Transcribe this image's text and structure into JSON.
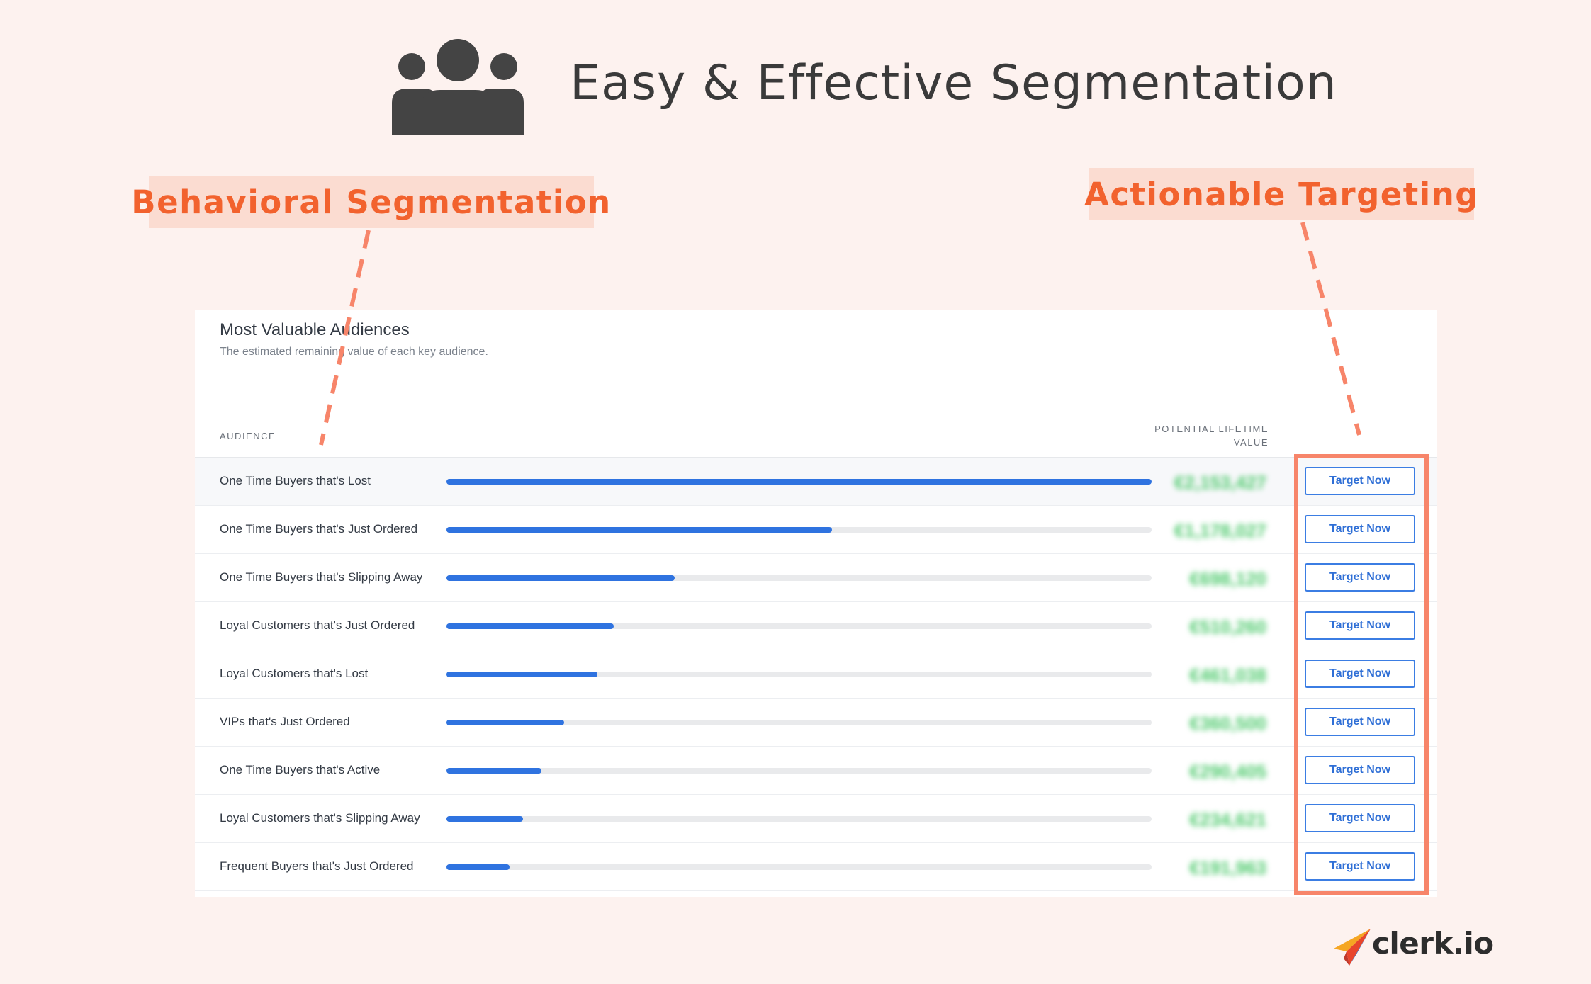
{
  "headline": "Easy & Effective Segmentation",
  "callouts": {
    "left": "Behavioral Segmentation",
    "right": "Actionable Targeting"
  },
  "card": {
    "title": "Most Valuable Audiences",
    "subtitle": "The estimated remaining value of each key audience.",
    "column_audience": "AUDIENCE",
    "column_value_line1": "POTENTIAL LIFETIME",
    "column_value_line2": "VALUE",
    "rows": [
      {
        "label": "One Time Buyers that's Lost",
        "fill_fraction": 1.0,
        "value": "€2,153,427",
        "button": "Target Now"
      },
      {
        "label": "One Time Buyers that's Just Ordered",
        "fill_fraction": 0.547,
        "value": "€1,178,027",
        "button": "Target Now"
      },
      {
        "label": "One Time Buyers that's Slipping Away",
        "fill_fraction": 0.324,
        "value": "€698,120",
        "button": "Target Now"
      },
      {
        "label": "Loyal Customers that's Just Ordered",
        "fill_fraction": 0.237,
        "value": "€510,260",
        "button": "Target Now"
      },
      {
        "label": "Loyal Customers that's Lost",
        "fill_fraction": 0.214,
        "value": "€461,038",
        "button": "Target Now"
      },
      {
        "label": "VIPs that's Just Ordered",
        "fill_fraction": 0.167,
        "value": "€360,500",
        "button": "Target Now"
      },
      {
        "label": "One Time Buyers that's Active",
        "fill_fraction": 0.135,
        "value": "€290,405",
        "button": "Target Now"
      },
      {
        "label": "Loyal Customers that's Slipping Away",
        "fill_fraction": 0.109,
        "value": "€234,621",
        "button": "Target Now"
      },
      {
        "label": "Frequent Buyers that's Just Ordered",
        "fill_fraction": 0.089,
        "value": "€191,963",
        "button": "Target Now"
      }
    ]
  },
  "brand": "clerk.io",
  "icons": {
    "header": "users-group-icon",
    "brand": "paper-plane-logo-icon"
  },
  "colors": {
    "background": "#fdf2ef",
    "callout_bg": "#fbdcd1",
    "callout_text": "#f2622e",
    "bar": "#2f73e0",
    "value": "#4cc96b",
    "highlight": "#f7856a"
  }
}
